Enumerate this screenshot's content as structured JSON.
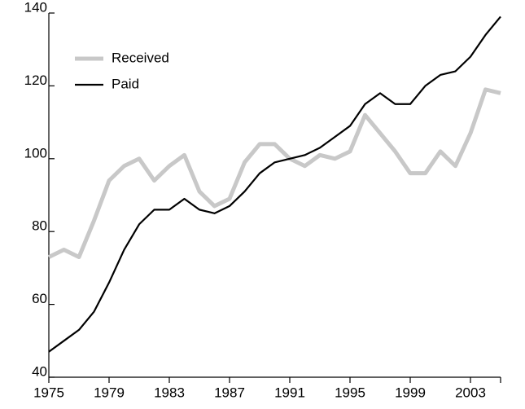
{
  "chart_data": {
    "type": "line",
    "x": [
      1975,
      1976,
      1977,
      1978,
      1979,
      1980,
      1981,
      1982,
      1983,
      1984,
      1985,
      1986,
      1987,
      1988,
      1989,
      1990,
      1991,
      1992,
      1993,
      1994,
      1995,
      1996,
      1997,
      1998,
      1999,
      2000,
      2001,
      2002,
      2003,
      2004,
      2005
    ],
    "series": [
      {
        "name": "Received",
        "color": "#c8c8c8",
        "values": [
          73,
          75,
          73,
          83,
          94,
          98,
          100,
          94,
          98,
          101,
          91,
          87,
          89,
          99,
          104,
          104,
          100,
          98,
          101,
          100,
          102,
          112,
          107,
          102,
          96,
          96,
          102,
          98,
          107,
          119,
          118
        ]
      },
      {
        "name": "Paid",
        "color": "#000000",
        "values": [
          47,
          50,
          53,
          58,
          66,
          75,
          82,
          86,
          86,
          89,
          86,
          85,
          87,
          91,
          96,
          99,
          100,
          101,
          103,
          106,
          109,
          115,
          118,
          115,
          115,
          120,
          123,
          124,
          128,
          134,
          139
        ]
      }
    ],
    "xlim": [
      1975,
      2005
    ],
    "xticks": [
      1975,
      1979,
      1983,
      1987,
      1991,
      1995,
      1999,
      2003
    ],
    "ylim": [
      40,
      140
    ],
    "yticks": [
      40,
      60,
      80,
      100,
      120,
      140
    ],
    "legend": "upper left"
  }
}
